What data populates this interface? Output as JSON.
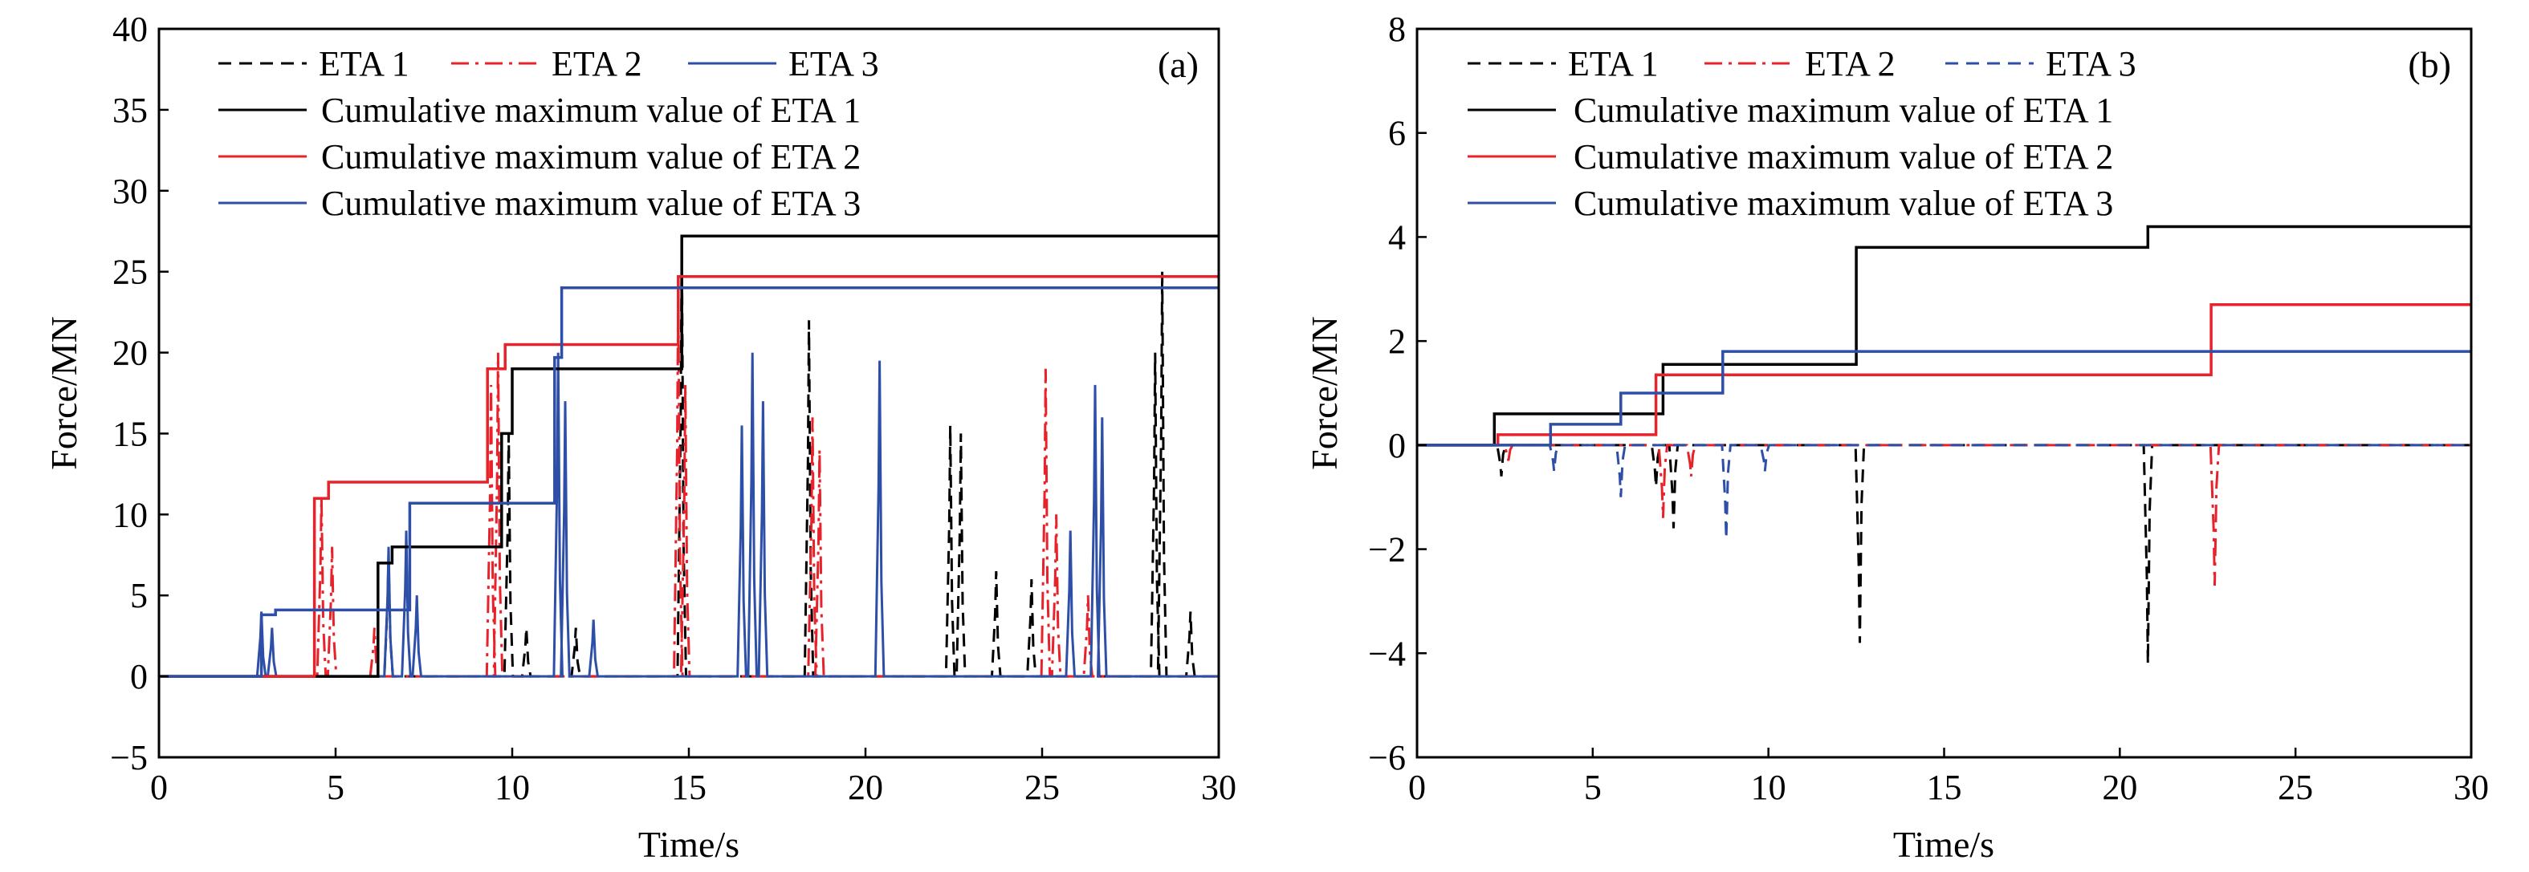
{
  "colors": {
    "eta1": "#000000",
    "eta2": "#e8222a",
    "eta3": "#2e4fa8",
    "axis": "#000000"
  },
  "chart_data": [
    {
      "type": "line",
      "panel_label": "(a)",
      "xlabel": "Time/s",
      "ylabel": "Force/MN",
      "xlim": [
        0,
        30
      ],
      "ylim": [
        -5,
        40
      ],
      "xticks": [
        0,
        5,
        10,
        15,
        20,
        25,
        30
      ],
      "yticks": [
        -5,
        0,
        5,
        10,
        15,
        20,
        25,
        30,
        35,
        40
      ],
      "xtick_labels": [
        "0",
        "5",
        "10",
        "15",
        "20",
        "25",
        "30"
      ],
      "ytick_labels": [
        "−5",
        "0",
        "5",
        "10",
        "15",
        "20",
        "25",
        "30",
        "35",
        "40"
      ],
      "grid": false,
      "legend_position": "top-left",
      "legend_row1": [
        "ETA 1",
        "ETA 2",
        "ETA 3"
      ],
      "series": [
        {
          "name": "ETA 1",
          "style": "dashed",
          "color": "#000000",
          "peaks": [
            [
              6.5,
              7.5
            ],
            [
              9.9,
              15
            ],
            [
              10.4,
              3
            ],
            [
              11.8,
              3
            ],
            [
              14.8,
              27
            ],
            [
              18.4,
              22
            ],
            [
              22.4,
              15.5
            ],
            [
              22.7,
              15
            ],
            [
              23.7,
              6.5
            ],
            [
              24.7,
              6
            ],
            [
              28.2,
              20
            ],
            [
              28.4,
              25
            ],
            [
              29.2,
              4
            ]
          ]
        },
        {
          "name": "ETA 2",
          "style": "dashdot",
          "color": "#e8222a",
          "peaks": [
            [
              4.6,
              11
            ],
            [
              4.9,
              8
            ],
            [
              6.1,
              3
            ],
            [
              9.4,
              18
            ],
            [
              9.6,
              20
            ],
            [
              14.7,
              24
            ],
            [
              14.9,
              18
            ],
            [
              18.5,
              16
            ],
            [
              18.7,
              14
            ],
            [
              25.1,
              19
            ],
            [
              25.4,
              10
            ],
            [
              26.3,
              5
            ]
          ]
        },
        {
          "name": "ETA 3",
          "style": "solid-thin",
          "color": "#2e4fa8",
          "peaks": [
            [
              2.9,
              4
            ],
            [
              3.2,
              3
            ],
            [
              6.5,
              8
            ],
            [
              7.0,
              9
            ],
            [
              7.3,
              5
            ],
            [
              11.3,
              20
            ],
            [
              11.5,
              17
            ],
            [
              12.3,
              3.5
            ],
            [
              16.5,
              15.5
            ],
            [
              16.8,
              20
            ],
            [
              17.1,
              17
            ],
            [
              20.4,
              19.5
            ],
            [
              25.8,
              9
            ],
            [
              26.5,
              18
            ],
            [
              26.7,
              16
            ]
          ]
        },
        {
          "name": "Cumulative maximum value of ETA 1",
          "style": "solid",
          "color": "#000000",
          "steps": [
            [
              0,
              0
            ],
            [
              6.2,
              0
            ],
            [
              6.2,
              7
            ],
            [
              6.6,
              7
            ],
            [
              6.6,
              8
            ],
            [
              9.7,
              8
            ],
            [
              9.7,
              15
            ],
            [
              10.0,
              15
            ],
            [
              10.0,
              19
            ],
            [
              14.8,
              19
            ],
            [
              14.8,
              27.2
            ],
            [
              30,
              27.2
            ]
          ]
        },
        {
          "name": "Cumulative maximum value of ETA 2",
          "style": "solid",
          "color": "#e8222a",
          "steps": [
            [
              0,
              0
            ],
            [
              4.4,
              0
            ],
            [
              4.4,
              11
            ],
            [
              4.8,
              11
            ],
            [
              4.8,
              12
            ],
            [
              9.3,
              12
            ],
            [
              9.3,
              19
            ],
            [
              9.8,
              19
            ],
            [
              9.8,
              20.5
            ],
            [
              14.7,
              20.5
            ],
            [
              14.7,
              24.7
            ],
            [
              30,
              24.7
            ]
          ]
        },
        {
          "name": "Cumulative maximum value of ETA 3",
          "style": "solid",
          "color": "#2e4fa8",
          "steps": [
            [
              0,
              0
            ],
            [
              2.9,
              0
            ],
            [
              2.9,
              3.8
            ],
            [
              3.3,
              3.8
            ],
            [
              3.3,
              4.1
            ],
            [
              7.1,
              4.1
            ],
            [
              7.1,
              10.7
            ],
            [
              11.2,
              10.7
            ],
            [
              11.2,
              19.7
            ],
            [
              11.4,
              19.7
            ],
            [
              11.4,
              24
            ],
            [
              30,
              24
            ]
          ]
        }
      ]
    },
    {
      "type": "line",
      "panel_label": "(b)",
      "xlabel": "Time/s",
      "ylabel": "Force/MN",
      "xlim": [
        0,
        30
      ],
      "ylim": [
        -6,
        8
      ],
      "xticks": [
        0,
        5,
        10,
        15,
        20,
        25,
        30
      ],
      "yticks": [
        -6,
        -4,
        -2,
        0,
        2,
        4,
        6,
        8
      ],
      "xtick_labels": [
        "0",
        "5",
        "10",
        "15",
        "20",
        "25",
        "30"
      ],
      "ytick_labels": [
        "−6",
        "−4",
        "−2",
        "0",
        "2",
        "4",
        "6",
        "8"
      ],
      "grid": false,
      "legend_position": "top-left",
      "legend_row1": [
        "ETA 1",
        "ETA 2",
        "ETA 3"
      ],
      "series": [
        {
          "name": "ETA 1",
          "style": "dashed",
          "color": "#000000",
          "peaks": [
            [
              2.4,
              -0.6
            ],
            [
              6.8,
              -0.8
            ],
            [
              7.3,
              -1.6
            ],
            [
              12.6,
              -3.8
            ],
            [
              20.8,
              -4.2
            ]
          ]
        },
        {
          "name": "ETA 2",
          "style": "dashdot",
          "color": "#e8222a",
          "peaks": [
            [
              2.6,
              -0.3
            ],
            [
              7.0,
              -1.4
            ],
            [
              7.8,
              -0.6
            ],
            [
              22.7,
              -2.7
            ]
          ]
        },
        {
          "name": "ETA 3",
          "style": "dashed",
          "color": "#2e4fa8",
          "peaks": [
            [
              3.9,
              -0.5
            ],
            [
              5.8,
              -1.0
            ],
            [
              8.8,
              -1.8
            ],
            [
              9.9,
              -0.5
            ]
          ]
        },
        {
          "name": "Cumulative maximum value of ETA 1",
          "style": "solid",
          "color": "#000000",
          "steps": [
            [
              0,
              0
            ],
            [
              2.2,
              0
            ],
            [
              2.2,
              0.6
            ],
            [
              7.0,
              0.6
            ],
            [
              7.0,
              1.55
            ],
            [
              12.5,
              1.55
            ],
            [
              12.5,
              3.8
            ],
            [
              20.8,
              3.8
            ],
            [
              20.8,
              4.2
            ],
            [
              30,
              4.2
            ]
          ]
        },
        {
          "name": "Cumulative maximum value of ETA 2",
          "style": "solid",
          "color": "#e8222a",
          "steps": [
            [
              0,
              0
            ],
            [
              2.3,
              0
            ],
            [
              2.3,
              0.2
            ],
            [
              6.8,
              0.2
            ],
            [
              6.8,
              1.35
            ],
            [
              22.6,
              1.35
            ],
            [
              22.6,
              2.7
            ],
            [
              30,
              2.7
            ]
          ]
        },
        {
          "name": "Cumulative maximum value of ETA 3",
          "style": "solid",
          "color": "#2e4fa8",
          "steps": [
            [
              0,
              0
            ],
            [
              3.8,
              0
            ],
            [
              3.8,
              0.4
            ],
            [
              5.8,
              0.4
            ],
            [
              5.8,
              1.0
            ],
            [
              8.7,
              1.0
            ],
            [
              8.7,
              1.8
            ],
            [
              30,
              1.8
            ]
          ]
        }
      ]
    }
  ]
}
